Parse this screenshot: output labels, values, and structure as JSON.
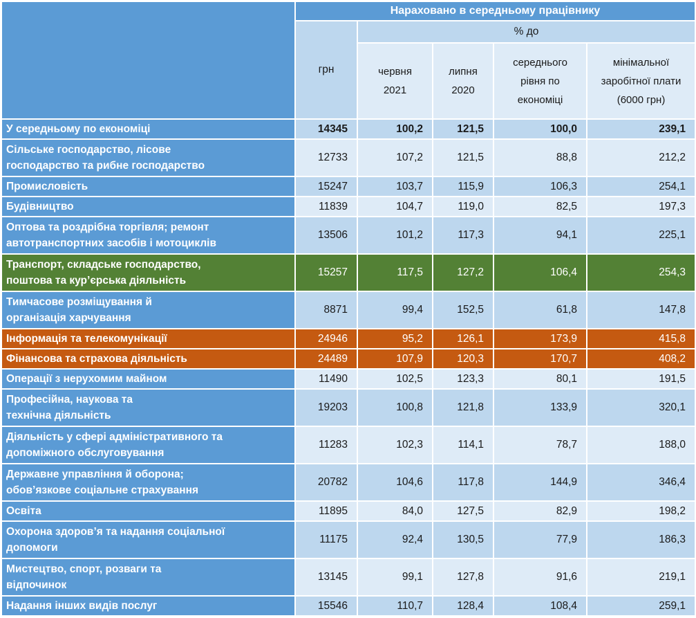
{
  "table": {
    "top_header": "Нараховано в середньому працівнику",
    "pct_header": "% до",
    "col_headers": {
      "uah": "грн",
      "june_2021": "червня\n2021",
      "july_2020": "липня\n2020",
      "avg_economy": "середнього\nрівня по\nекономіці",
      "min_wage": "мінімальної\nзаробітної плати\n(6000 грн)"
    },
    "rows": [
      {
        "name": "У середньому по економіці",
        "uah": "14345",
        "to_june_2021": "100,2",
        "to_july_2020": "121,5",
        "to_avg_economy": "100,0",
        "to_min_wage": "239,1",
        "variant": "total",
        "tall": false
      },
      {
        "name": "Сільське господарство, лісове\nгосподарство та рибне господарство",
        "uah": "12733",
        "to_june_2021": "107,2",
        "to_july_2020": "121,5",
        "to_avg_economy": "88,8",
        "to_min_wage": "212,2",
        "variant": "light",
        "tall": true
      },
      {
        "name": "Промисловість",
        "uah": "15247",
        "to_june_2021": "103,7",
        "to_july_2020": "115,9",
        "to_avg_economy": "106,3",
        "to_min_wage": "254,1",
        "variant": "band",
        "tall": false
      },
      {
        "name": "Будівництво",
        "uah": "11839",
        "to_june_2021": "104,7",
        "to_july_2020": "119,0",
        "to_avg_economy": "82,5",
        "to_min_wage": "197,3",
        "variant": "light",
        "tall": false
      },
      {
        "name": "Оптова та роздрібна торгівля; ремонт\nавтотранспортних засобів і мотоциклів",
        "uah": "13506",
        "to_june_2021": "101,2",
        "to_july_2020": "117,3",
        "to_avg_economy": "94,1",
        "to_min_wage": "225,1",
        "variant": "band",
        "tall": true
      },
      {
        "name": "Транспорт, складське господарство,\nпоштова та кур’єрська діяльність",
        "uah": "15257",
        "to_june_2021": "117,5",
        "to_july_2020": "127,2",
        "to_avg_economy": "106,4",
        "to_min_wage": "254,3",
        "variant": "green",
        "tall": true
      },
      {
        "name": "Тимчасове розміщування й\nорганізація харчування",
        "uah": "8871",
        "to_june_2021": "99,4",
        "to_july_2020": "152,5",
        "to_avg_economy": "61,8",
        "to_min_wage": "147,8",
        "variant": "band",
        "tall": true
      },
      {
        "name": "Інформація та телекомунікації",
        "uah": "24946",
        "to_june_2021": "95,2",
        "to_july_2020": "126,1",
        "to_avg_economy": "173,9",
        "to_min_wage": "415,8",
        "variant": "orange",
        "tall": false
      },
      {
        "name": "Фінансова та страхова діяльність",
        "uah": "24489",
        "to_june_2021": "107,9",
        "to_july_2020": "120,3",
        "to_avg_economy": "170,7",
        "to_min_wage": "408,2",
        "variant": "orange",
        "tall": false
      },
      {
        "name": "Операції з нерухомим майном",
        "uah": "11490",
        "to_june_2021": "102,5",
        "to_july_2020": "123,3",
        "to_avg_economy": "80,1",
        "to_min_wage": "191,5",
        "variant": "light",
        "tall": false
      },
      {
        "name": "Професійна, наукова та\nтехнічна діяльність",
        "uah": "19203",
        "to_june_2021": "100,8",
        "to_july_2020": "121,8",
        "to_avg_economy": "133,9",
        "to_min_wage": "320,1",
        "variant": "band",
        "tall": true
      },
      {
        "name": "Діяльність у сфері адміністративного та\nдопоміжного обслуговування",
        "uah": "11283",
        "to_june_2021": "102,3",
        "to_july_2020": "114,1",
        "to_avg_economy": "78,7",
        "to_min_wage": "188,0",
        "variant": "light",
        "tall": true
      },
      {
        "name": "Державне управління й оборона;\nобов’язкове соціальне страхування",
        "uah": "20782",
        "to_june_2021": "104,6",
        "to_july_2020": "117,8",
        "to_avg_economy": "144,9",
        "to_min_wage": "346,4",
        "variant": "band",
        "tall": true
      },
      {
        "name": "Освіта",
        "uah": "11895",
        "to_june_2021": "84,0",
        "to_july_2020": "127,5",
        "to_avg_economy": "82,9",
        "to_min_wage": "198,2",
        "variant": "light",
        "tall": false
      },
      {
        "name": "Охорона здоров’я та надання соціальної\nдопомоги",
        "uah": "11175",
        "to_june_2021": "92,4",
        "to_july_2020": "130,5",
        "to_avg_economy": "77,9",
        "to_min_wage": "186,3",
        "variant": "band",
        "tall": true
      },
      {
        "name": "Мистецтво, спорт, розваги та\nвідпочинок",
        "uah": "13145",
        "to_june_2021": "99,1",
        "to_july_2020": "127,8",
        "to_avg_economy": "91,6",
        "to_min_wage": "219,1",
        "variant": "light",
        "tall": true
      },
      {
        "name": "Надання інших видів послуг",
        "uah": "15546",
        "to_june_2021": "110,7",
        "to_july_2020": "128,4",
        "to_avg_economy": "108,4",
        "to_min_wage": "259,1",
        "variant": "band",
        "tall": false
      }
    ]
  },
  "colors": {
    "header_blue": "#5B9BD5",
    "band_blue": "#BDD7EE",
    "light_blue": "#DEEBF7",
    "green": "#538135",
    "orange": "#C55A11",
    "text": "#1a1a1a"
  }
}
